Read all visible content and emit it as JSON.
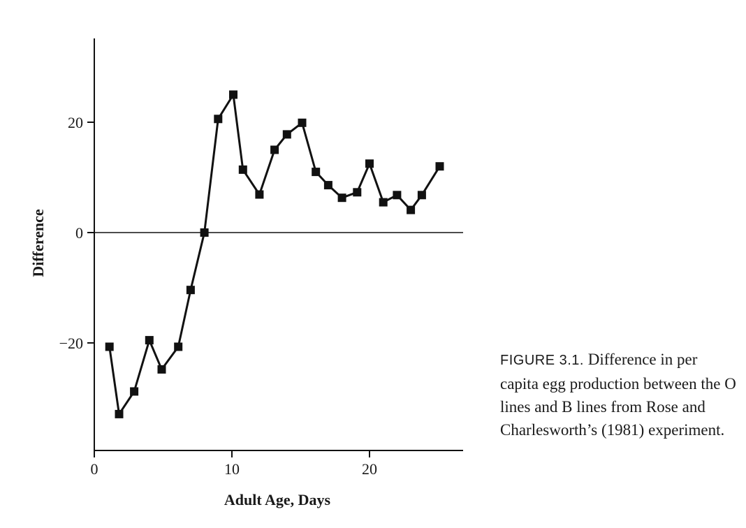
{
  "chart_data": {
    "type": "line",
    "xlabel": "Adult Age, Days",
    "ylabel": "Difference",
    "xlim": [
      0,
      26.5
    ],
    "ylim": [
      -40,
      35
    ],
    "xticks": [
      0,
      10,
      20
    ],
    "yticks": [
      20,
      0,
      -20
    ],
    "xtick_labels": [
      "0",
      "10",
      "20"
    ],
    "ytick_labels": [
      "20",
      "0",
      "−20"
    ],
    "zero_line": true,
    "grid": false,
    "marker": "square",
    "line_color": "#111111",
    "x": [
      1.1,
      1.8,
      2.9,
      4.0,
      4.9,
      6.1,
      7.0,
      8.0,
      9.0,
      10.1,
      10.8,
      12.0,
      13.1,
      14.0,
      15.1,
      16.1,
      17.0,
      18.0,
      19.1,
      20.0,
      21.0,
      22.0,
      23.0,
      23.8,
      25.1
    ],
    "values": [
      -20.7,
      -32.9,
      -28.8,
      -19.5,
      -24.8,
      -20.7,
      -10.4,
      0,
      20.6,
      25.0,
      11.4,
      6.9,
      15.0,
      17.8,
      19.9,
      11.0,
      8.6,
      6.3,
      7.3,
      12.5,
      5.5,
      6.8,
      4.1,
      6.8,
      12.0
    ]
  },
  "caption": {
    "label": "FIGURE 3.1.",
    "text": " Difference in per capita egg production between the O lines and B lines from Rose and Charlesworth’s (1981) experiment."
  }
}
